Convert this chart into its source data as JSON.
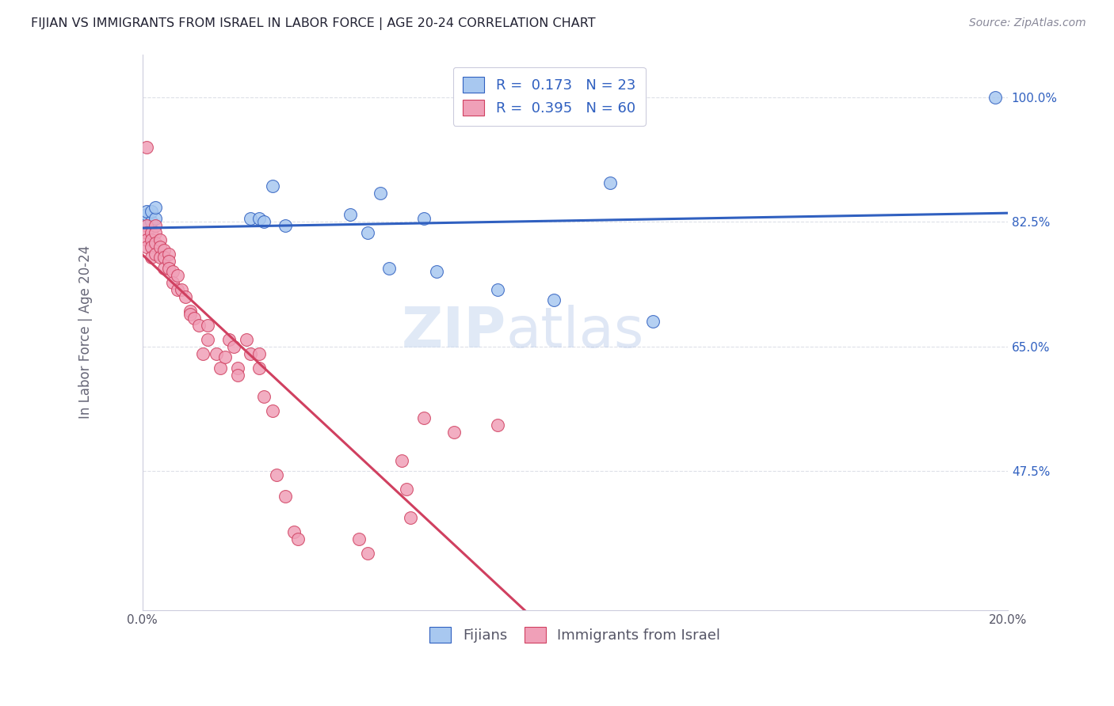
{
  "title": "FIJIAN VS IMMIGRANTS FROM ISRAEL IN LABOR FORCE | AGE 20-24 CORRELATION CHART",
  "source": "Source: ZipAtlas.com",
  "xlabel": "",
  "ylabel": "In Labor Force | Age 20-24",
  "legend_label_blue": "Fijians",
  "legend_label_pink": "Immigrants from Israel",
  "R_blue": 0.173,
  "N_blue": 23,
  "R_pink": 0.395,
  "N_pink": 60,
  "color_blue": "#a8c8f0",
  "color_pink": "#f0a0b8",
  "color_blue_line": "#3060c0",
  "color_pink_line": "#d04060",
  "color_dashed": "#e0b0b8",
  "xlim": [
    0.0,
    0.2
  ],
  "ylim": [
    0.28,
    1.06
  ],
  "yticks": [
    0.475,
    0.65,
    0.825,
    1.0
  ],
  "ytick_labels": [
    "47.5%",
    "65.0%",
    "82.5%",
    "100.0%"
  ],
  "xticks": [
    0.0,
    0.04,
    0.08,
    0.12,
    0.16,
    0.2
  ],
  "xtick_labels": [
    "0.0%",
    "",
    "",
    "",
    "",
    "20.0%"
  ],
  "blue_x": [
    0.001,
    0.001,
    0.001,
    0.002,
    0.002,
    0.003,
    0.003,
    0.025,
    0.027,
    0.028,
    0.03,
    0.033,
    0.048,
    0.052,
    0.055,
    0.057,
    0.065,
    0.068,
    0.082,
    0.095,
    0.108,
    0.118,
    0.197
  ],
  "blue_y": [
    0.825,
    0.835,
    0.84,
    0.825,
    0.84,
    0.83,
    0.845,
    0.83,
    0.83,
    0.825,
    0.875,
    0.82,
    0.835,
    0.81,
    0.865,
    0.76,
    0.83,
    0.755,
    0.73,
    0.715,
    0.88,
    0.685,
    1.0
  ],
  "pink_x": [
    0.001,
    0.001,
    0.001,
    0.001,
    0.001,
    0.002,
    0.002,
    0.002,
    0.002,
    0.003,
    0.003,
    0.003,
    0.003,
    0.004,
    0.004,
    0.004,
    0.005,
    0.005,
    0.005,
    0.006,
    0.006,
    0.006,
    0.007,
    0.007,
    0.008,
    0.008,
    0.009,
    0.01,
    0.011,
    0.011,
    0.012,
    0.013,
    0.014,
    0.015,
    0.015,
    0.017,
    0.018,
    0.019,
    0.02,
    0.021,
    0.022,
    0.022,
    0.024,
    0.025,
    0.027,
    0.027,
    0.028,
    0.03,
    0.031,
    0.033,
    0.035,
    0.036,
    0.05,
    0.052,
    0.06,
    0.061,
    0.062,
    0.065,
    0.072,
    0.082
  ],
  "pink_y": [
    0.93,
    0.82,
    0.81,
    0.8,
    0.79,
    0.81,
    0.8,
    0.79,
    0.775,
    0.82,
    0.81,
    0.795,
    0.78,
    0.8,
    0.79,
    0.775,
    0.785,
    0.775,
    0.76,
    0.78,
    0.77,
    0.76,
    0.755,
    0.74,
    0.75,
    0.73,
    0.73,
    0.72,
    0.7,
    0.695,
    0.69,
    0.68,
    0.64,
    0.68,
    0.66,
    0.64,
    0.62,
    0.635,
    0.66,
    0.65,
    0.62,
    0.61,
    0.66,
    0.64,
    0.64,
    0.62,
    0.58,
    0.56,
    0.47,
    0.44,
    0.39,
    0.38,
    0.38,
    0.36,
    0.49,
    0.45,
    0.41,
    0.55,
    0.53,
    0.54
  ],
  "watermark_zip": "ZIP",
  "watermark_atlas": "atlas",
  "background_color": "#ffffff",
  "grid_color": "#dde0e8"
}
